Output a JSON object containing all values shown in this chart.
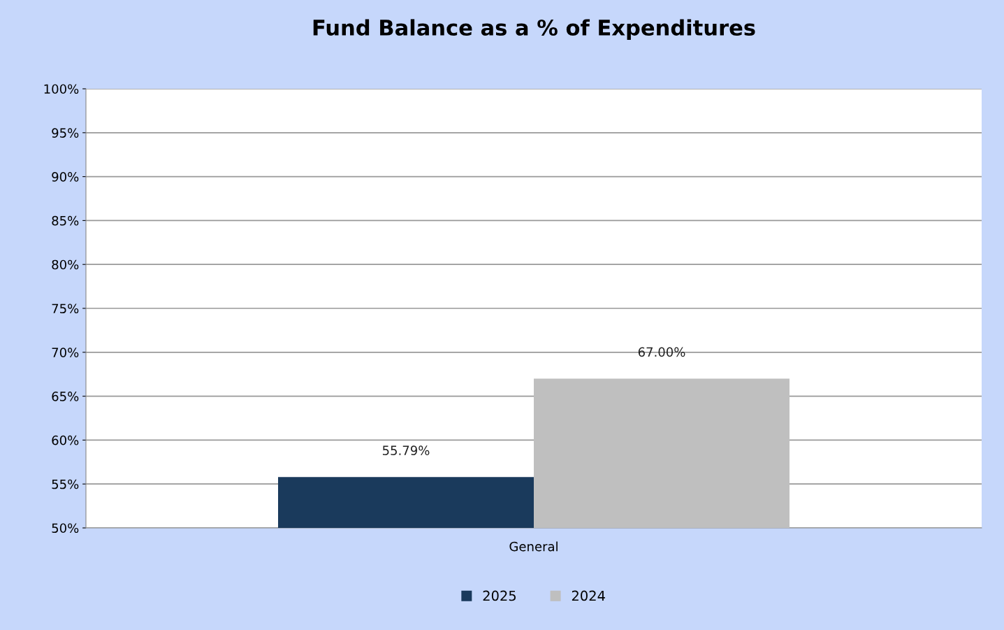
{
  "chart_data": {
    "type": "bar",
    "title": "Fund Balance as a % of Expenditures",
    "categories": [
      "General"
    ],
    "series": [
      {
        "name": "2025",
        "color": "#1a3a5c",
        "values": [
          55.79
        ],
        "value_labels": [
          "55.79%"
        ]
      },
      {
        "name": "2024",
        "color": "#bfbfbf",
        "values": [
          67.0
        ],
        "value_labels": [
          "67.00%"
        ]
      }
    ],
    "ylim": [
      50,
      100
    ],
    "yticks": [
      {
        "value": 50,
        "label": "50%"
      },
      {
        "value": 55,
        "label": "55%"
      },
      {
        "value": 60,
        "label": "60%"
      },
      {
        "value": 65,
        "label": "65%"
      },
      {
        "value": 70,
        "label": "70%"
      },
      {
        "value": 75,
        "label": "75%"
      },
      {
        "value": 80,
        "label": "80%"
      },
      {
        "value": 85,
        "label": "85%"
      },
      {
        "value": 90,
        "label": "90%"
      },
      {
        "value": 95,
        "label": "95%"
      },
      {
        "value": 100,
        "label": "100%"
      }
    ],
    "grid": "y",
    "legend": "bottom"
  }
}
